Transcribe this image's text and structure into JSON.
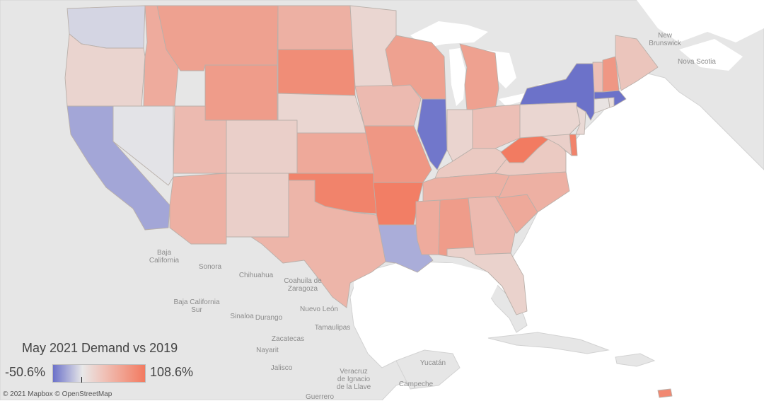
{
  "legend": {
    "title": "May 2021 Demand vs 2019",
    "min_label": "-50.6%",
    "max_label": "108.6%",
    "min_value": -50.6,
    "max_value": 108.6,
    "color_low": "#6b71c9",
    "color_mid": "#e8e8e8",
    "color_high": "#f27a60"
  },
  "attribution": "© 2021 Mapbox © OpenStreetMap",
  "place_labels": [
    {
      "id": "new-brunswick",
      "text": "New\nBrunswick"
    },
    {
      "id": "nova-scotia",
      "text": "Nova Scotia"
    },
    {
      "id": "baja-california",
      "text": "Baja\nCalifornia"
    },
    {
      "id": "sonora",
      "text": "Sonora"
    },
    {
      "id": "chihuahua",
      "text": "Chihuahua"
    },
    {
      "id": "coahuila",
      "text": "Coahuila de\nZaragoza"
    },
    {
      "id": "baja-california-sur",
      "text": "Baja California\nSur"
    },
    {
      "id": "sinaloa",
      "text": "Sinaloa"
    },
    {
      "id": "durango",
      "text": "Durango"
    },
    {
      "id": "nuevo-leon",
      "text": "Nuevo León"
    },
    {
      "id": "tamaulipas",
      "text": "Tamaulipas"
    },
    {
      "id": "zacatecas",
      "text": "Zacatecas"
    },
    {
      "id": "nayarit",
      "text": "Nayarit"
    },
    {
      "id": "jalisco",
      "text": "Jalisco"
    },
    {
      "id": "veracruz",
      "text": "Veracruz\nde Ignacio\nde la Llave"
    },
    {
      "id": "yucatan",
      "text": "Yucatán"
    },
    {
      "id": "campeche",
      "text": "Campeche"
    },
    {
      "id": "guerrero",
      "text": "Guerrero"
    }
  ],
  "states": [
    {
      "id": "WA",
      "value": -8
    },
    {
      "id": "OR",
      "value": 20
    },
    {
      "id": "CA",
      "value": -28
    },
    {
      "id": "NV",
      "value": -2
    },
    {
      "id": "ID",
      "value": 60
    },
    {
      "id": "MT",
      "value": 70
    },
    {
      "id": "WY",
      "value": 75
    },
    {
      "id": "UT",
      "value": 45
    },
    {
      "id": "AZ",
      "value": 55
    },
    {
      "id": "CO",
      "value": 25
    },
    {
      "id": "NM",
      "value": 25
    },
    {
      "id": "ND",
      "value": 55
    },
    {
      "id": "SD",
      "value": 90
    },
    {
      "id": "NE",
      "value": 18
    },
    {
      "id": "KS",
      "value": 62
    },
    {
      "id": "OK",
      "value": 100
    },
    {
      "id": "TX",
      "value": 50
    },
    {
      "id": "MN",
      "value": 18
    },
    {
      "id": "IA",
      "value": 45
    },
    {
      "id": "MO",
      "value": 80
    },
    {
      "id": "AR",
      "value": 105
    },
    {
      "id": "LA",
      "value": -25
    },
    {
      "id": "WI",
      "value": 70
    },
    {
      "id": "IL",
      "value": -48
    },
    {
      "id": "MI",
      "value": 70
    },
    {
      "id": "IN",
      "value": 20
    },
    {
      "id": "OH",
      "value": 40
    },
    {
      "id": "KY",
      "value": 30
    },
    {
      "id": "TN",
      "value": 55
    },
    {
      "id": "MS",
      "value": 60
    },
    {
      "id": "AL",
      "value": 75
    },
    {
      "id": "GA",
      "value": 45
    },
    {
      "id": "FL",
      "value": 22
    },
    {
      "id": "SC",
      "value": 62
    },
    {
      "id": "NC",
      "value": 55
    },
    {
      "id": "VA",
      "value": 30
    },
    {
      "id": "WV",
      "value": 108
    },
    {
      "id": "MD",
      "value": 25
    },
    {
      "id": "DE",
      "value": 100
    },
    {
      "id": "PA",
      "value": 18
    },
    {
      "id": "NJ",
      "value": 15
    },
    {
      "id": "NY",
      "value": -50
    },
    {
      "id": "CT",
      "value": 5
    },
    {
      "id": "RI",
      "value": 10
    },
    {
      "id": "MA",
      "value": -50
    },
    {
      "id": "VT",
      "value": 40
    },
    {
      "id": "NH",
      "value": 80
    },
    {
      "id": "ME",
      "value": 35
    },
    {
      "id": "PR",
      "value": 95
    }
  ]
}
